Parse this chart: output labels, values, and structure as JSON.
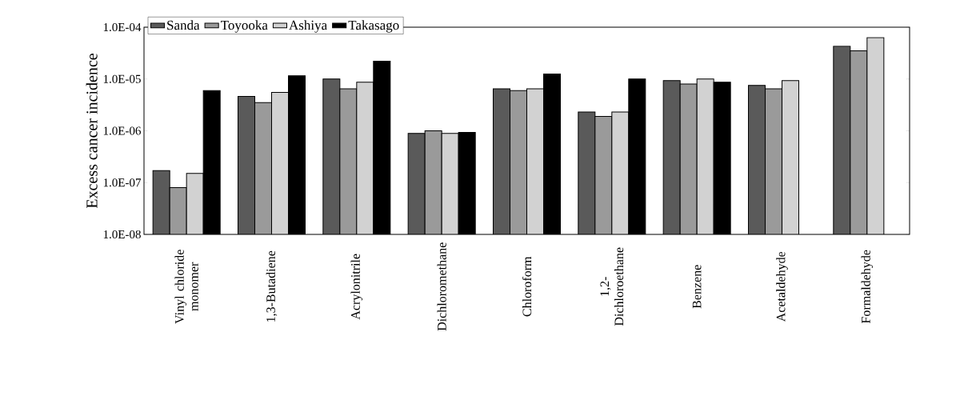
{
  "chart_data": {
    "type": "bar",
    "ylabel": "Excess cancer incidence",
    "categories": [
      "Vinyl chloride monomer",
      "1,3-Butadiene",
      "Acrylonitrile",
      "Dichloromethane",
      "Chloroform",
      "1,2-Dichloroethane",
      "Benzene",
      "Acetaldehyde",
      "Formaldehyde"
    ],
    "series": [
      {
        "name": "Sanda",
        "color": "#5a5a5a",
        "values": [
          1.7e-07,
          4.6e-06,
          1e-05,
          8.9e-07,
          6.5e-06,
          2.3e-06,
          9.3e-06,
          7.5e-06,
          4.3e-05
        ]
      },
      {
        "name": "Toyooka",
        "color": "#9a9a9a",
        "values": [
          8e-08,
          3.5e-06,
          6.5e-06,
          1e-06,
          6e-06,
          1.9e-06,
          8e-06,
          6.5e-06,
          3.5e-05
        ]
      },
      {
        "name": "Ashiya",
        "color": "#d2d2d2",
        "values": [
          1.5e-07,
          5.5e-06,
          8.7e-06,
          8.9e-07,
          6.5e-06,
          2.3e-06,
          1e-05,
          9.3e-06,
          6.3e-05
        ]
      },
      {
        "name": "Takasago",
        "color": "#000000",
        "values": [
          6e-06,
          1.15e-05,
          2.2e-05,
          9.3e-07,
          1.25e-05,
          1e-05,
          8.7e-06,
          null,
          null
        ]
      }
    ],
    "log": "y",
    "ylim": [
      1e-08,
      0.0001
    ],
    "yticks": [
      {
        "value": 1e-08,
        "label": "1.0E-08"
      },
      {
        "value": 1e-07,
        "label": "1.0E-07"
      },
      {
        "value": 1e-06,
        "label": "1.0E-06"
      },
      {
        "value": 1e-05,
        "label": "1.0E-05"
      },
      {
        "value": 0.0001,
        "label": "1.0E-04"
      }
    ],
    "legend": "top left",
    "grid": false
  }
}
